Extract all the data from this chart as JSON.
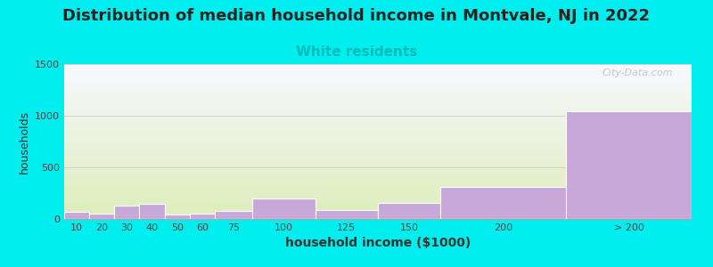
{
  "title": "Distribution of median household income in Montvale, NJ in 2022",
  "subtitle": "White residents",
  "xlabel": "household income ($1000)",
  "ylabel": "households",
  "title_fontsize": 13,
  "subtitle_fontsize": 11,
  "subtitle_color": "#00BBBB",
  "ylabel_fontsize": 9,
  "xlabel_fontsize": 10,
  "background_color": "#00EEEE",
  "plot_bg_top": "#F8F8FF",
  "plot_bg_bottom": "#DDEEBB",
  "bar_color": "#C8A8D8",
  "bar_edge_color": "#FFFFFF",
  "categories": [
    "10",
    "20",
    "30",
    "40",
    "50",
    "60",
    "75",
    "100",
    "125",
    "150",
    "200",
    "> 200"
  ],
  "values": [
    65,
    50,
    130,
    150,
    45,
    55,
    75,
    195,
    85,
    155,
    310,
    1040
  ],
  "ylim": [
    0,
    1500
  ],
  "yticks": [
    0,
    500,
    1000,
    1500
  ],
  "watermark": "City-Data.com",
  "grid_color": "#CCCCCC",
  "left_edges": [
    0,
    10,
    20,
    30,
    40,
    50,
    60,
    75,
    100,
    125,
    150,
    200
  ],
  "right_edges": [
    10,
    20,
    30,
    40,
    50,
    60,
    75,
    100,
    125,
    150,
    200,
    250
  ],
  "xlim": [
    0,
    250
  ]
}
